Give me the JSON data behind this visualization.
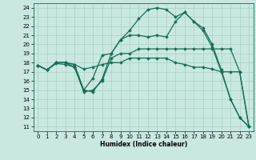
{
  "title": "",
  "xlabel": "Humidex (Indice chaleur)",
  "bg_color": "#c8e8e0",
  "grid_color": "#a8d0c8",
  "line_color": "#1a6b5a",
  "xlim": [
    -0.5,
    23.5
  ],
  "ylim": [
    10.5,
    24.5
  ],
  "xticks": [
    0,
    1,
    2,
    3,
    4,
    5,
    6,
    7,
    8,
    9,
    10,
    11,
    12,
    13,
    14,
    15,
    16,
    17,
    18,
    19,
    20,
    21,
    22,
    23
  ],
  "yticks": [
    11,
    12,
    13,
    14,
    15,
    16,
    17,
    18,
    19,
    20,
    21,
    22,
    23,
    24
  ],
  "lines": [
    {
      "x": [
        0,
        1,
        2,
        3,
        4,
        5,
        6,
        7,
        8,
        9,
        10,
        11,
        12,
        13,
        14,
        15,
        16,
        17,
        18,
        19,
        20,
        21,
        22,
        23
      ],
      "y": [
        17.7,
        17.2,
        18.0,
        18.0,
        17.5,
        15.0,
        14.8,
        16.2,
        19.0,
        20.5,
        21.5,
        22.8,
        23.8,
        24.0,
        23.8,
        23.0,
        23.5,
        22.5,
        21.8,
        20.0,
        17.2,
        14.0,
        12.0,
        11.0
      ]
    },
    {
      "x": [
        0,
        1,
        2,
        3,
        4,
        5,
        6,
        7,
        8,
        9,
        10,
        11,
        12,
        13,
        14,
        15,
        16,
        17,
        18,
        19,
        20,
        21,
        22,
        23
      ],
      "y": [
        17.7,
        17.2,
        18.0,
        18.0,
        17.8,
        15.0,
        16.3,
        18.8,
        19.0,
        20.5,
        21.0,
        21.0,
        20.8,
        21.0,
        20.8,
        22.5,
        23.5,
        22.5,
        21.5,
        19.7,
        17.0,
        14.0,
        12.0,
        11.0
      ]
    },
    {
      "x": [
        0,
        1,
        2,
        3,
        4,
        5,
        6,
        7,
        8,
        9,
        10,
        11,
        12,
        13,
        14,
        15,
        16,
        17,
        18,
        19,
        20,
        21,
        22,
        23
      ],
      "y": [
        17.7,
        17.2,
        17.9,
        17.8,
        17.5,
        14.8,
        15.0,
        16.0,
        18.5,
        19.0,
        19.0,
        19.5,
        19.5,
        19.5,
        19.5,
        19.5,
        19.5,
        19.5,
        19.5,
        19.5,
        19.5,
        19.5,
        17.0,
        11.0
      ]
    },
    {
      "x": [
        0,
        1,
        2,
        3,
        4,
        5,
        6,
        7,
        8,
        9,
        10,
        11,
        12,
        13,
        14,
        15,
        16,
        17,
        18,
        19,
        20,
        21,
        22,
        23
      ],
      "y": [
        17.7,
        17.2,
        18.0,
        18.0,
        17.8,
        17.3,
        17.5,
        17.8,
        18.0,
        18.0,
        18.5,
        18.5,
        18.5,
        18.5,
        18.5,
        18.0,
        17.8,
        17.5,
        17.5,
        17.3,
        17.0,
        17.0,
        17.0,
        11.0
      ]
    }
  ]
}
